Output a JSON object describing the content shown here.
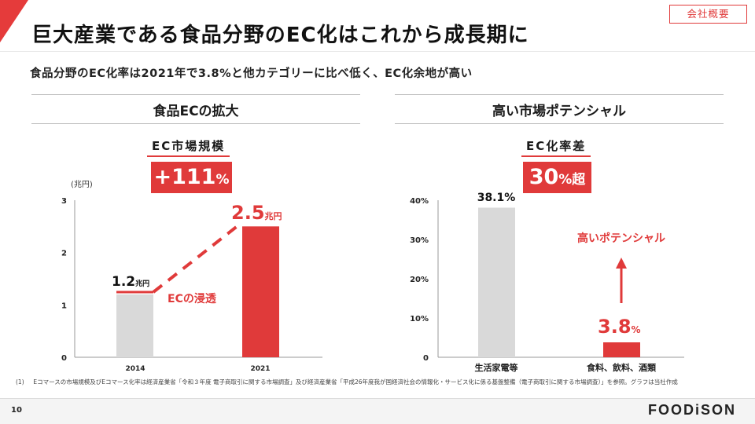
{
  "header": {
    "title": "巨大産業である食品分野のEC化はこれから成長期に",
    "badge": "会社概要"
  },
  "subtitle": "食品分野のEC化率は2021年で3.8%と他カテゴリーに比べ低く、EC化余地が高い",
  "left_section": {
    "heading": "食品ECの拡大",
    "metric_label": "EC市場規模",
    "metric_value": "+111",
    "metric_unit": "%",
    "unit_label": "(兆円)",
    "bar1_label": "1.2",
    "bar1_unit": "兆円",
    "bar2_label": "2.5",
    "bar2_unit": "兆円",
    "annotation": "ECの浸透"
  },
  "right_section": {
    "heading": "高い市場ポテンシャル",
    "metric_label": "EC化率差",
    "metric_value": "30",
    "metric_unit": "%超",
    "bar1_label": "38.1%",
    "bar2_value": "3.8",
    "bar2_unit": "%",
    "annotation": "高いポテンシャル"
  },
  "colors": {
    "accent": "#e03a3a",
    "bar_gray": "#d9d9d9",
    "text": "#1a1a1a"
  },
  "chart_data": [
    {
      "type": "bar",
      "title": "EC市場規模",
      "ylabel": "(兆円)",
      "categories": [
        "2014",
        "2021"
      ],
      "values": [
        1.2,
        2.5
      ],
      "ylim": [
        0,
        3
      ],
      "yticks": [
        0,
        1,
        2,
        3
      ]
    },
    {
      "type": "bar",
      "title": "EC化率差",
      "categories": [
        "生活家電等",
        "食料、飲料、酒類"
      ],
      "values": [
        38.1,
        3.8
      ],
      "ylim": [
        0,
        40
      ],
      "yticks": [
        "0",
        "10%",
        "20%",
        "30%",
        "40%"
      ]
    }
  ],
  "footnote": {
    "num": "(1)",
    "text": "Eコマースの市場規模及びEコマース化率は経済産業省「令和３年度 電子商取引に関する市場調査」及び経済産業省「平成26年度我が国経済社会の情報化・サービス化に係る基盤整備（電子商取引に関する市場調査）」を参照。グラフは当社作成"
  },
  "footer": {
    "page_number": "10",
    "brand": "FOODiSON"
  }
}
